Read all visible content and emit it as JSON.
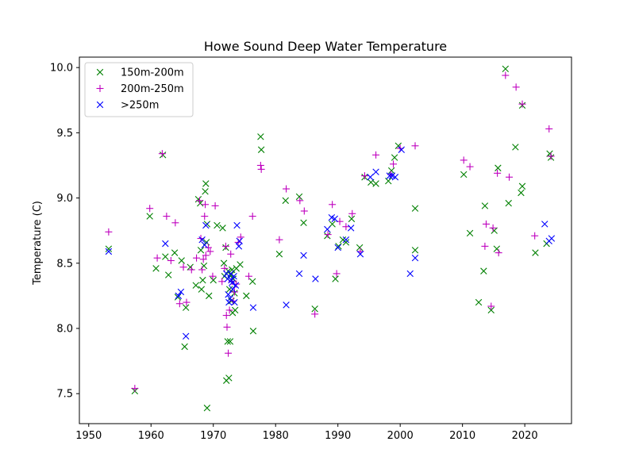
{
  "chart_data": {
    "type": "scatter",
    "title": "Howe Sound Deep Water Temperature",
    "xlabel": "",
    "ylabel": "Temperature (C)",
    "xlim": [
      1948.5,
      2027.5
    ],
    "ylim": [
      7.27,
      10.08
    ],
    "x_ticks": [
      1950,
      1960,
      1970,
      1980,
      1990,
      2000,
      2010,
      2020
    ],
    "y_ticks": [
      7.5,
      8.0,
      8.5,
      9.0,
      9.5,
      10.0
    ],
    "y_tick_labels": [
      "7.5",
      "8.0",
      "8.5",
      "9.0",
      "9.5",
      "10.0"
    ],
    "grid": false,
    "legend_position": "upper-left",
    "series": [
      {
        "name": "150m-200m",
        "color": "#008000",
        "marker": "x",
        "points": [
          [
            1953.2,
            8.61
          ],
          [
            1957.4,
            7.52
          ],
          [
            1959.8,
            8.86
          ],
          [
            1960.8,
            8.46
          ],
          [
            1961.9,
            9.33
          ],
          [
            1962.3,
            8.55
          ],
          [
            1962.8,
            8.41
          ],
          [
            1963.8,
            8.58
          ],
          [
            1964.3,
            8.24
          ],
          [
            1964.9,
            8.52
          ],
          [
            1965.4,
            7.86
          ],
          [
            1965.6,
            8.16
          ],
          [
            1966.3,
            8.47
          ],
          [
            1967.2,
            8.33
          ],
          [
            1967.6,
            8.99
          ],
          [
            1967.9,
            8.96
          ],
          [
            1968.0,
            8.6
          ],
          [
            1968.1,
            8.3
          ],
          [
            1968.3,
            8.37
          ],
          [
            1968.5,
            8.48
          ],
          [
            1968.7,
            9.05
          ],
          [
            1968.8,
            9.11
          ],
          [
            1968.9,
            8.66
          ],
          [
            1969.0,
            8.8
          ],
          [
            1969.3,
            8.25
          ],
          [
            1969.0,
            7.39
          ],
          [
            1970.0,
            8.37
          ],
          [
            1970.6,
            8.79
          ],
          [
            1971.5,
            8.77
          ],
          [
            1971.7,
            8.5
          ],
          [
            1971.8,
            8.4
          ],
          [
            1972.0,
            8.62
          ],
          [
            1972.1,
            7.6
          ],
          [
            1972.3,
            7.9
          ],
          [
            1972.4,
            8.44
          ],
          [
            1972.5,
            7.62
          ],
          [
            1972.6,
            8.3
          ],
          [
            1972.7,
            7.9
          ],
          [
            1972.8,
            8.41
          ],
          [
            1972.9,
            8.21
          ],
          [
            1973.0,
            8.45
          ],
          [
            1973.1,
            8.12
          ],
          [
            1973.2,
            8.38
          ],
          [
            1973.4,
            8.27
          ],
          [
            1973.5,
            8.14
          ],
          [
            1973.7,
            8.46
          ],
          [
            1974.3,
            8.49
          ],
          [
            1975.3,
            8.25
          ],
          [
            1976.3,
            8.36
          ],
          [
            1976.4,
            7.98
          ],
          [
            1977.6,
            9.47
          ],
          [
            1977.7,
            9.37
          ],
          [
            1980.6,
            8.57
          ],
          [
            1981.6,
            8.98
          ],
          [
            1983.8,
            9.01
          ],
          [
            1984.5,
            8.81
          ],
          [
            1986.3,
            8.15
          ],
          [
            1988.3,
            8.71
          ],
          [
            1989.1,
            8.8
          ],
          [
            1989.6,
            8.38
          ],
          [
            1990.1,
            8.63
          ],
          [
            1990.8,
            8.68
          ],
          [
            1991.3,
            8.66
          ],
          [
            1992.2,
            8.84
          ],
          [
            1993.5,
            8.62
          ],
          [
            1994.3,
            9.16
          ],
          [
            1995.3,
            9.12
          ],
          [
            1996.1,
            9.11
          ],
          [
            1998.1,
            9.13
          ],
          [
            1998.6,
            9.21
          ],
          [
            1999.1,
            9.31
          ],
          [
            1999.7,
            9.4
          ],
          [
            2002.4,
            8.92
          ],
          [
            2002.4,
            8.6
          ],
          [
            2010.2,
            9.18
          ],
          [
            2011.2,
            8.73
          ],
          [
            2012.6,
            8.2
          ],
          [
            2013.4,
            8.44
          ],
          [
            2013.6,
            8.94
          ],
          [
            2014.6,
            8.14
          ],
          [
            2015.1,
            8.75
          ],
          [
            2015.5,
            8.61
          ],
          [
            2015.7,
            9.23
          ],
          [
            2017.4,
            8.96
          ],
          [
            2016.9,
            9.99
          ],
          [
            2018.5,
            9.39
          ],
          [
            2019.4,
            9.04
          ],
          [
            2019.6,
            9.09
          ],
          [
            2019.6,
            9.71
          ],
          [
            2021.7,
            8.58
          ],
          [
            2023.5,
            8.65
          ],
          [
            2024.0,
            9.34
          ],
          [
            2024.2,
            9.31
          ]
        ]
      },
      {
        "name": "200m-250m",
        "color": "#bf00bf",
        "marker": "+",
        "points": [
          [
            1953.2,
            8.74
          ],
          [
            1957.4,
            7.54
          ],
          [
            1959.8,
            8.92
          ],
          [
            1961.0,
            8.54
          ],
          [
            1961.8,
            9.34
          ],
          [
            1962.5,
            8.86
          ],
          [
            1963.2,
            8.52
          ],
          [
            1963.9,
            8.81
          ],
          [
            1964.6,
            8.19
          ],
          [
            1965.2,
            8.47
          ],
          [
            1965.7,
            8.2
          ],
          [
            1966.5,
            8.45
          ],
          [
            1967.3,
            8.54
          ],
          [
            1967.8,
            8.98
          ],
          [
            1968.0,
            8.69
          ],
          [
            1968.2,
            8.45
          ],
          [
            1968.4,
            8.53
          ],
          [
            1968.6,
            8.86
          ],
          [
            1968.7,
            8.95
          ],
          [
            1968.8,
            8.56
          ],
          [
            1969.2,
            8.62
          ],
          [
            1969.5,
            8.59
          ],
          [
            1969.9,
            8.4
          ],
          [
            1970.3,
            8.94
          ],
          [
            1971.4,
            8.36
          ],
          [
            1971.8,
            8.46
          ],
          [
            1972.0,
            8.63
          ],
          [
            1972.1,
            8.1
          ],
          [
            1972.2,
            8.01
          ],
          [
            1972.4,
            7.81
          ],
          [
            1972.6,
            8.14
          ],
          [
            1972.8,
            8.57
          ],
          [
            1973.0,
            8.36
          ],
          [
            1973.2,
            8.21
          ],
          [
            1973.4,
            8.28
          ],
          [
            1973.7,
            8.34
          ],
          [
            1974.0,
            8.66
          ],
          [
            1974.4,
            8.7
          ],
          [
            1975.7,
            8.4
          ],
          [
            1976.3,
            8.86
          ],
          [
            1977.6,
            9.25
          ],
          [
            1977.7,
            9.22
          ],
          [
            1980.6,
            8.68
          ],
          [
            1981.7,
            9.07
          ],
          [
            1983.9,
            8.98
          ],
          [
            1984.6,
            8.9
          ],
          [
            1986.3,
            8.11
          ],
          [
            1988.4,
            8.72
          ],
          [
            1989.1,
            8.95
          ],
          [
            1989.8,
            8.42
          ],
          [
            1990.3,
            8.82
          ],
          [
            1991.3,
            8.78
          ],
          [
            1992.3,
            8.88
          ],
          [
            1993.6,
            8.59
          ],
          [
            1994.3,
            9.17
          ],
          [
            1996.1,
            9.33
          ],
          [
            1998.5,
            9.18
          ],
          [
            1998.9,
            9.26
          ],
          [
            2000.0,
            9.38
          ],
          [
            2002.4,
            9.4
          ],
          [
            2010.2,
            9.29
          ],
          [
            2011.2,
            9.24
          ],
          [
            2013.6,
            8.63
          ],
          [
            2013.8,
            8.8
          ],
          [
            2014.6,
            8.17
          ],
          [
            2014.9,
            8.77
          ],
          [
            2015.6,
            9.19
          ],
          [
            2015.8,
            8.58
          ],
          [
            2016.9,
            9.94
          ],
          [
            2017.5,
            9.16
          ],
          [
            2018.6,
            9.85
          ],
          [
            2019.6,
            9.72
          ],
          [
            2021.6,
            8.71
          ],
          [
            2023.9,
            9.53
          ],
          [
            2024.2,
            9.32
          ]
        ]
      },
      {
        "name": ">250m",
        "color": "#0000ff",
        "marker": "x",
        "points": [
          [
            1953.2,
            8.59
          ],
          [
            1962.3,
            8.65
          ],
          [
            1964.4,
            8.25
          ],
          [
            1964.8,
            8.28
          ],
          [
            1965.6,
            7.94
          ],
          [
            1968.2,
            8.68
          ],
          [
            1968.6,
            8.64
          ],
          [
            1968.8,
            8.79
          ],
          [
            1972.1,
            8.42
          ],
          [
            1972.3,
            8.38
          ],
          [
            1972.4,
            8.26
          ],
          [
            1972.5,
            8.2
          ],
          [
            1972.7,
            8.23
          ],
          [
            1972.8,
            8.42
          ],
          [
            1972.9,
            8.37
          ],
          [
            1973.0,
            8.35
          ],
          [
            1973.1,
            8.3
          ],
          [
            1973.3,
            8.4
          ],
          [
            1973.4,
            8.2
          ],
          [
            1973.6,
            8.33
          ],
          [
            1973.8,
            8.79
          ],
          [
            1974.1,
            8.63
          ],
          [
            1974.2,
            8.67
          ],
          [
            1976.4,
            8.16
          ],
          [
            1981.7,
            8.18
          ],
          [
            1983.8,
            8.42
          ],
          [
            1984.5,
            8.56
          ],
          [
            1986.4,
            8.38
          ],
          [
            1988.3,
            8.76
          ],
          [
            1989.0,
            8.85
          ],
          [
            1989.5,
            8.84
          ],
          [
            1990.0,
            8.62
          ],
          [
            1991.3,
            8.68
          ],
          [
            1992.1,
            8.77
          ],
          [
            1993.6,
            8.57
          ],
          [
            1995.2,
            9.16
          ],
          [
            1996.1,
            9.2
          ],
          [
            1998.3,
            9.17
          ],
          [
            1998.7,
            9.17
          ],
          [
            1999.2,
            9.16
          ],
          [
            2000.2,
            9.37
          ],
          [
            2001.6,
            8.42
          ],
          [
            2002.4,
            8.54
          ],
          [
            2023.2,
            8.8
          ],
          [
            2023.9,
            8.67
          ],
          [
            2024.3,
            8.69
          ]
        ]
      }
    ]
  }
}
